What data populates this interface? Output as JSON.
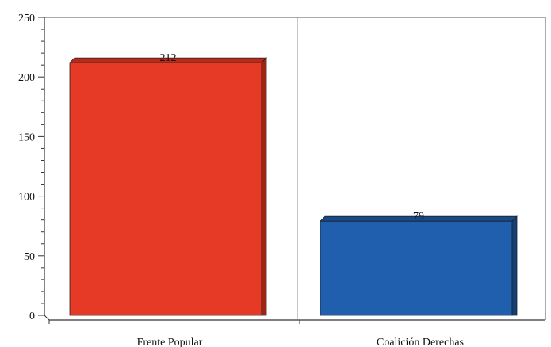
{
  "chart_data": {
    "type": "bar",
    "title": "",
    "xlabel": "",
    "ylabel": "",
    "categories": [
      "Frente Popular",
      "Coalición Derechas"
    ],
    "values": [
      212,
      79
    ],
    "bar_colors": [
      "#e63a26",
      "#1f5fae"
    ],
    "bar_top_colors": [
      "#b82a1a",
      "#164a8a"
    ],
    "bar_side_colors": [
      "#9e2414",
      "#123f78"
    ],
    "data_labels": [
      "212",
      "79"
    ],
    "ylim": [
      0,
      250
    ],
    "yticks": [
      0,
      50,
      100,
      150,
      200,
      250
    ],
    "grid": false,
    "legend": "none"
  }
}
